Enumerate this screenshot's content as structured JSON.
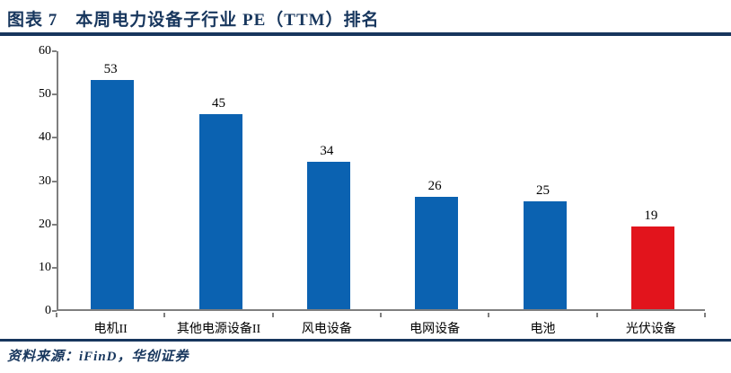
{
  "figure": {
    "title": "图表 7　本周电力设备子行业 PE（TTM）排名",
    "source_label": "资料来源：iFinD，华创证券"
  },
  "chart_data": {
    "type": "bar",
    "title": "本周电力设备子行业PE（TTM）排名",
    "categories": [
      "电机II",
      "其他电源设备II",
      "风电设备",
      "电网设备",
      "电池",
      "光伏设备"
    ],
    "values": [
      53,
      45,
      34,
      26,
      25,
      19
    ],
    "data_labels_shown": true,
    "xlabel": "",
    "ylabel": "",
    "ylim": [
      0,
      60
    ],
    "yticks": [
      0,
      10,
      20,
      30,
      40,
      50,
      60
    ],
    "grid": false,
    "legend": "none",
    "bar_colors": [
      "#0B62B1",
      "#0B62B1",
      "#0B62B1",
      "#0B62B1",
      "#0B62B1",
      "#E2141C"
    ]
  },
  "colors": {
    "accent_navy": "#17365D",
    "bar_blue": "#0B62B1",
    "bar_red": "#E2141C",
    "axis_gray": "#7F7F7F",
    "label_black": "#000000",
    "background": "#FFFFFF"
  }
}
